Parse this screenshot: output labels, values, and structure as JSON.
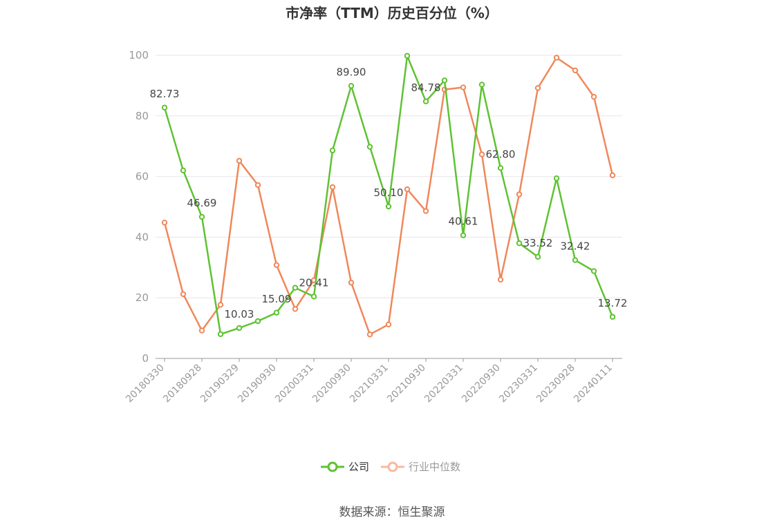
{
  "chart_data": {
    "type": "line",
    "title": "市净率（TTM）历史百分位（%）",
    "source": "数据来源：恒生聚源",
    "x": [
      "20180330",
      "",
      "20180928",
      "",
      "20190329",
      "",
      "20190930",
      "",
      "20200331",
      "",
      "20200930",
      "",
      "20210331",
      "",
      "20210930",
      "",
      "20220331",
      "",
      "20220930",
      "",
      "20230331",
      "",
      "20230928",
      "",
      "20240111"
    ],
    "ylim": [
      0,
      100
    ],
    "yticks": [
      0,
      20,
      40,
      60,
      80,
      100
    ],
    "grid": true,
    "legend_position": "bottom-center",
    "series": [
      {
        "name": "公司",
        "color": "#5ec232",
        "values": [
          82.73,
          62.0,
          46.69,
          8.0,
          10.03,
          12.3,
          15.09,
          23.3,
          20.41,
          68.6,
          89.9,
          69.8,
          50.1,
          99.8,
          84.78,
          91.7,
          40.61,
          90.3,
          62.8,
          38.0,
          33.52,
          59.4,
          32.42,
          28.8,
          13.72
        ],
        "labels": [
          "82.73",
          "",
          "46.69",
          "",
          "10.03",
          "",
          "15.09",
          "",
          "20.41",
          "",
          "89.90",
          "",
          "50.10",
          "",
          "84.78",
          "",
          "40.61",
          "",
          "62.80",
          "",
          "33.52",
          "",
          "32.42",
          "",
          "13.72"
        ]
      },
      {
        "name": "行业中位数",
        "color": "#f0875a",
        "values": [
          44.8,
          21.2,
          9.2,
          17.7,
          65.2,
          57.2,
          30.8,
          16.3,
          25.8,
          56.5,
          25.0,
          7.9,
          11.2,
          55.8,
          48.6,
          88.7,
          89.4,
          67.3,
          26.0,
          54.1,
          89.2,
          99.2,
          95.0,
          86.3,
          60.4
        ]
      }
    ]
  },
  "legend": {
    "items": [
      {
        "label": "公司",
        "color": "#5ec232",
        "text_color": "#333333"
      },
      {
        "label": "行业中位数",
        "color": "#f7b9a0",
        "text_color": "#999999"
      }
    ]
  }
}
